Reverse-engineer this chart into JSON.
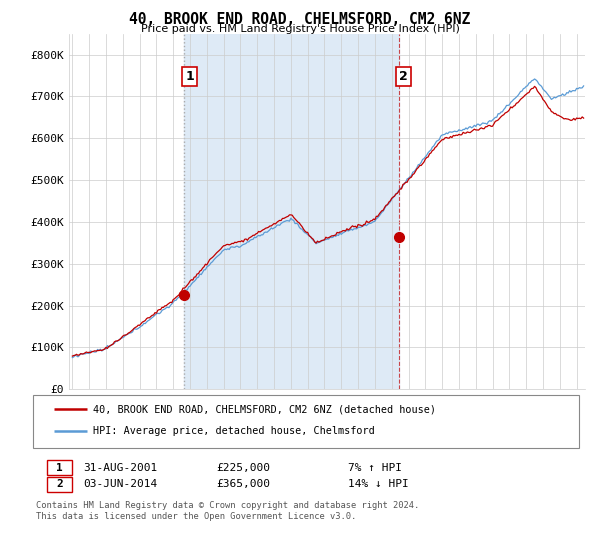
{
  "title": "40, BROOK END ROAD, CHELMSFORD, CM2 6NZ",
  "subtitle": "Price paid vs. HM Land Registry's House Price Index (HPI)",
  "ylabel_ticks": [
    "£0",
    "£100K",
    "£200K",
    "£300K",
    "£400K",
    "£500K",
    "£600K",
    "£700K",
    "£800K"
  ],
  "ytick_values": [
    0,
    100000,
    200000,
    300000,
    400000,
    500000,
    600000,
    700000,
    800000
  ],
  "ylim": [
    0,
    850000
  ],
  "xlim_start": 1994.8,
  "xlim_end": 2025.5,
  "hpi_color": "#5b9bd5",
  "hpi_shade_color": "#deeaf6",
  "price_color": "#c00000",
  "marker1_x": 2001.67,
  "marker1_y": 225000,
  "marker2_x": 2014.42,
  "marker2_y": 365000,
  "transaction1_date": "31-AUG-2001",
  "transaction1_price": "£225,000",
  "transaction1_hpi": "7% ↑ HPI",
  "transaction2_date": "03-JUN-2014",
  "transaction2_price": "£365,000",
  "transaction2_hpi": "14% ↓ HPI",
  "legend_label1": "40, BROOK END ROAD, CHELMSFORD, CM2 6NZ (detached house)",
  "legend_label2": "HPI: Average price, detached house, Chelmsford",
  "footer": "Contains HM Land Registry data © Crown copyright and database right 2024.\nThis data is licensed under the Open Government Licence v3.0.",
  "background_color": "#ffffff",
  "grid_color": "#cccccc"
}
